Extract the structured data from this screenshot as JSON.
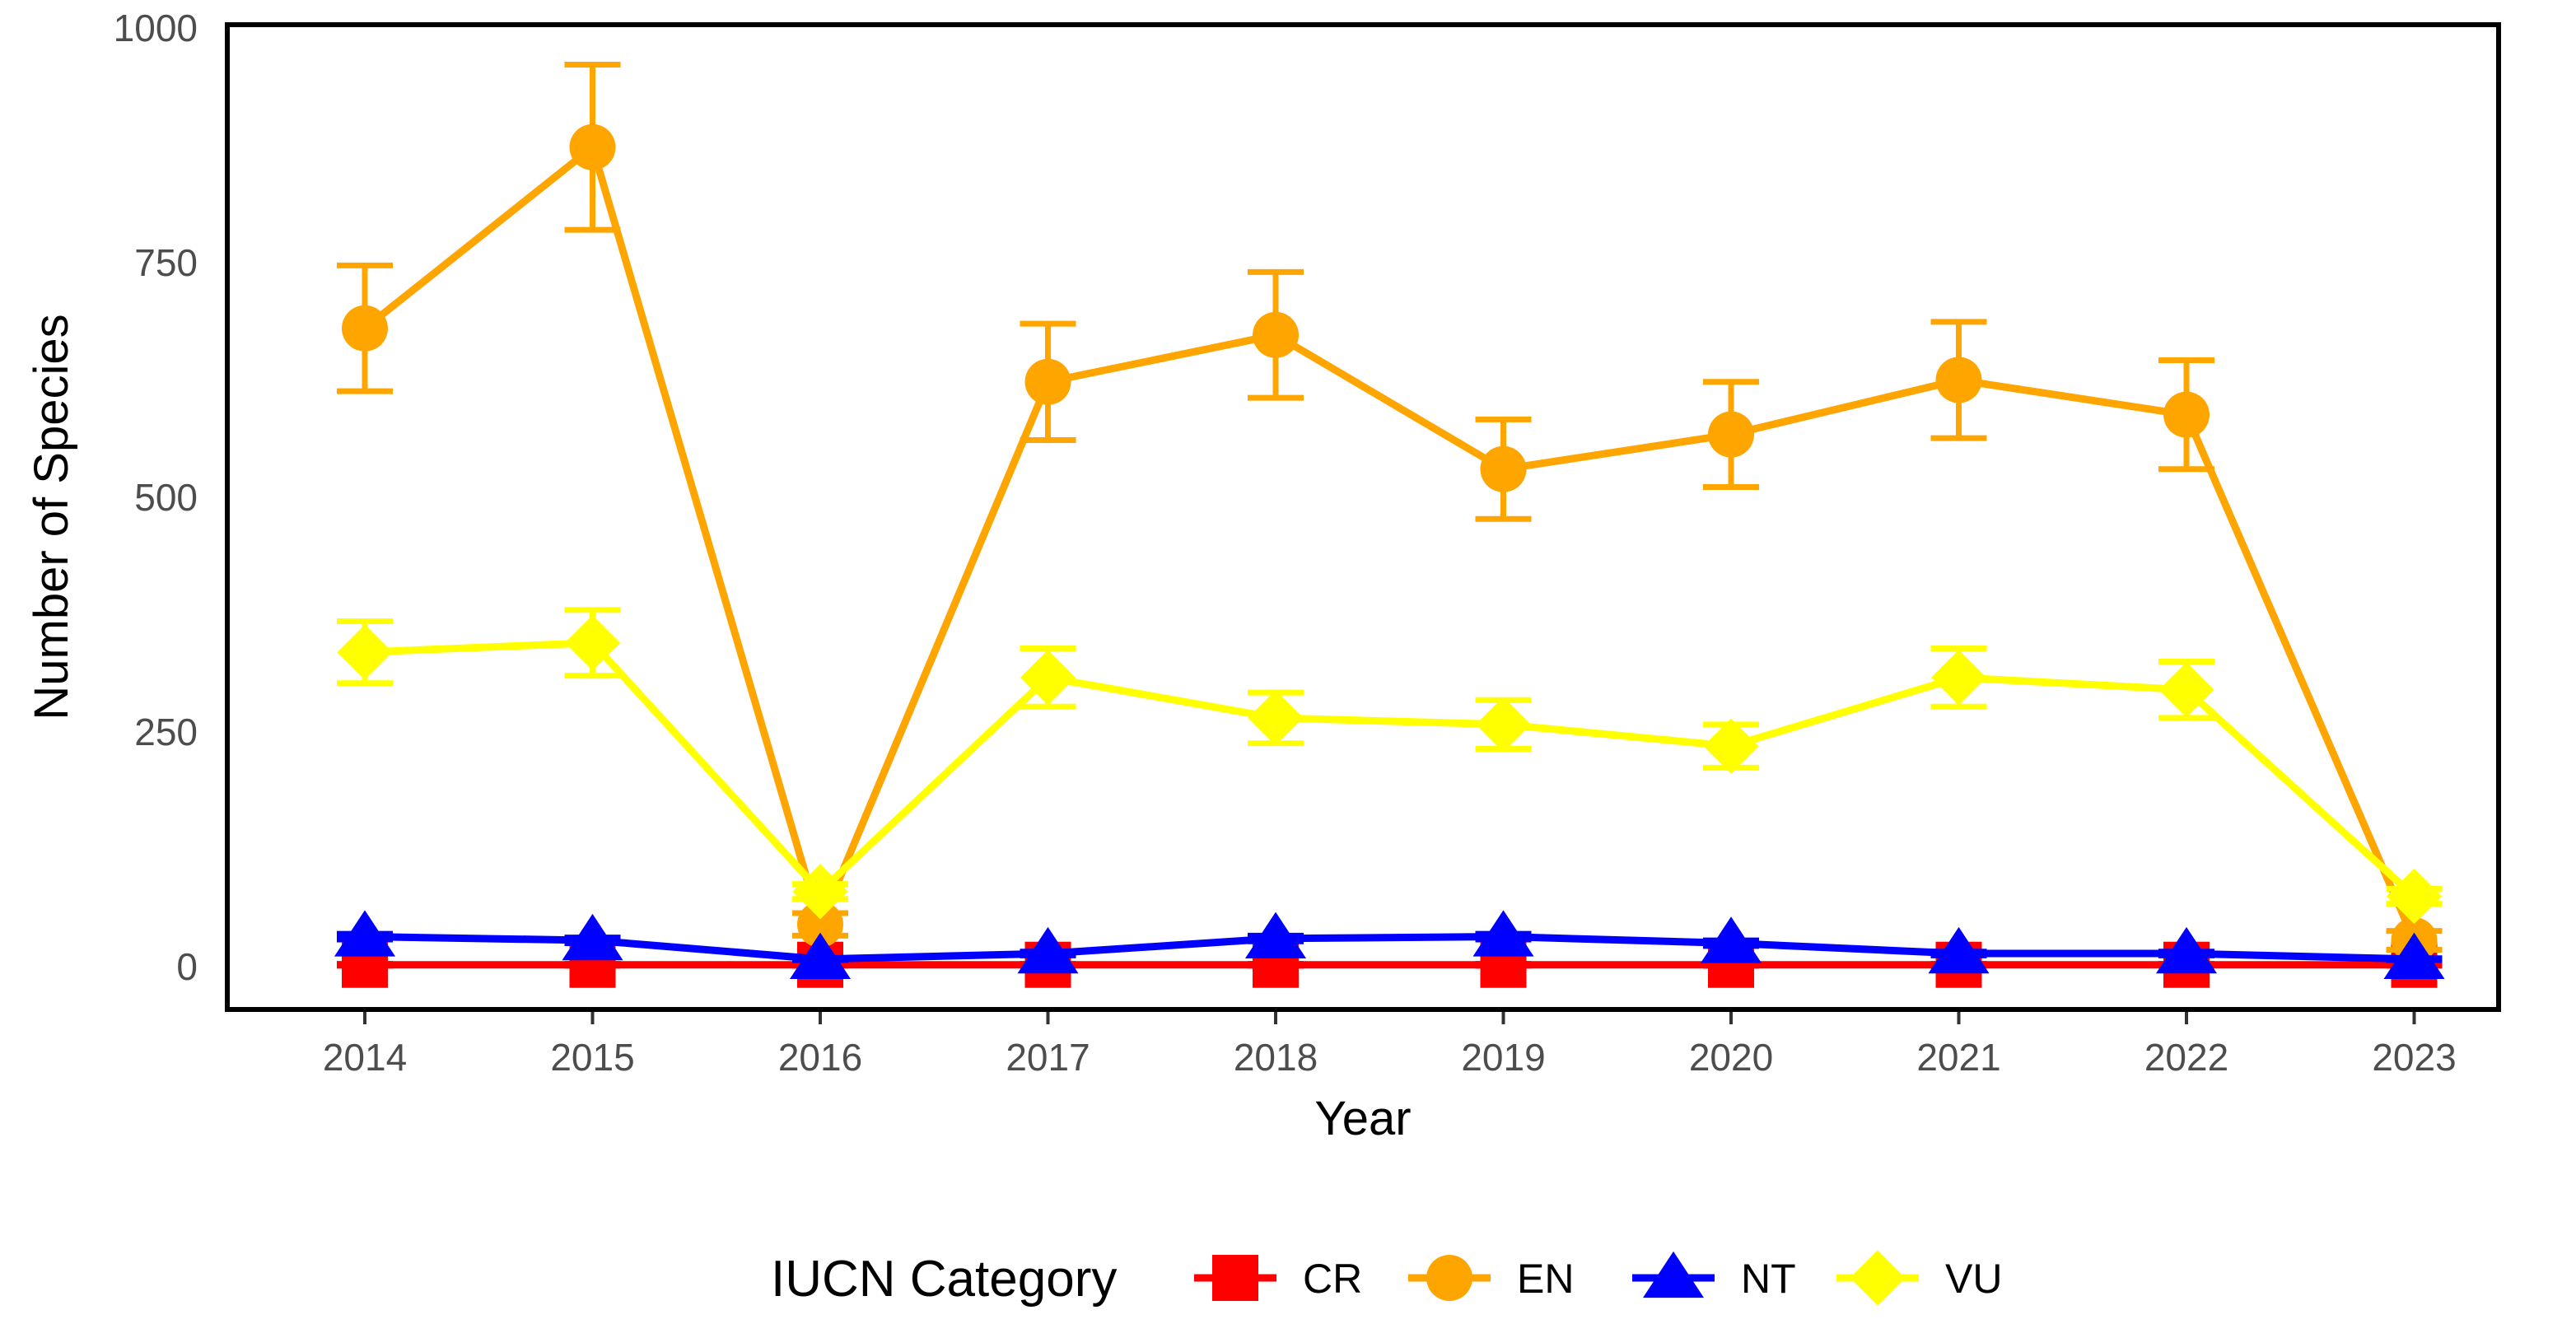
{
  "chart_data": {
    "type": "line",
    "title": "",
    "xlabel": "Year",
    "ylabel": "Number of Species",
    "x": [
      "2014",
      "2015",
      "2016",
      "2017",
      "2018",
      "2019",
      "2020",
      "2021",
      "2022",
      "2023"
    ],
    "ylim": [
      0,
      1000
    ],
    "yticks": [
      "0",
      "250",
      "500",
      "750",
      "1000"
    ],
    "legend_title": "IUCN Category",
    "legend_position": "bottom",
    "series": [
      {
        "name": "CR",
        "color": "#ff0000",
        "marker": "square",
        "values": [
          2,
          2,
          2,
          2,
          2,
          2,
          2,
          2,
          2,
          2
        ],
        "errors": [
          1,
          1,
          1,
          1,
          1,
          1,
          1,
          1,
          1,
          1
        ]
      },
      {
        "name": "EN",
        "color": "#ffa500",
        "marker": "circle",
        "values": [
          680,
          873,
          45,
          623,
          673,
          530,
          567,
          625,
          588,
          28
        ],
        "errors": [
          67,
          88,
          12,
          62,
          67,
          53,
          56,
          62,
          58,
          10
        ]
      },
      {
        "name": "NT",
        "color": "#0000ff",
        "marker": "triangle",
        "values": [
          32,
          28,
          8,
          14,
          30,
          32,
          25,
          14,
          14,
          8
        ],
        "errors": [
          3,
          3,
          1,
          2,
          3,
          3,
          3,
          2,
          2,
          1
        ]
      },
      {
        "name": "VU",
        "color": "#ffff00",
        "marker": "diamond",
        "values": [
          335,
          345,
          80,
          308,
          265,
          258,
          235,
          308,
          295,
          75
        ],
        "errors": [
          33,
          35,
          8,
          31,
          27,
          26,
          23,
          31,
          30,
          8
        ]
      }
    ]
  }
}
